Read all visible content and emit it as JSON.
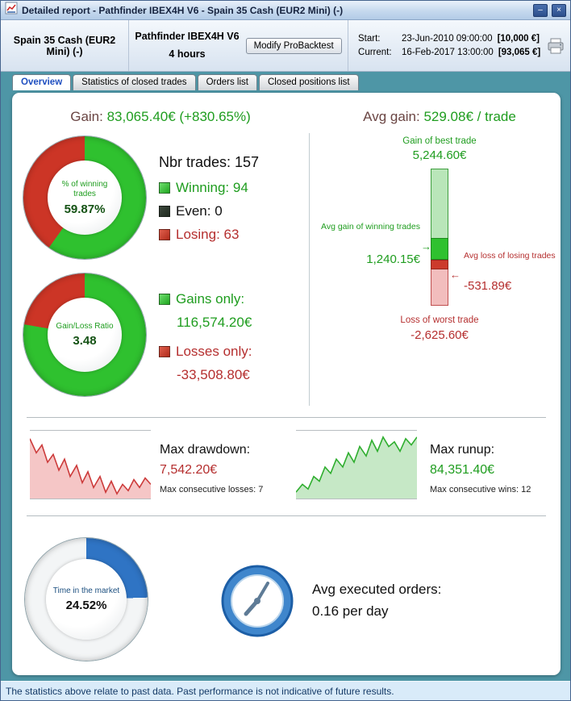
{
  "window": {
    "title": "Detailed report - Pathfinder IBEX4H V6 - Spain 35 Cash (EUR2 Mini) (-)"
  },
  "icons": {
    "minimize": "–",
    "close": "×",
    "arrow_right": "→",
    "arrow_left": "←"
  },
  "colors": {
    "teal_bg": "#4e96a6",
    "green": "#1f9d1f",
    "red": "#b52f2f",
    "label_brown": "#6a4543",
    "donut_green": "#2fc12f",
    "donut_red": "#cc3526",
    "donut_blue": "#2f74c4",
    "donut_green_dark": "#145214",
    "time_label_blue": "#1d5080",
    "legend_even": "#1f2a1f",
    "bar_light_green": "#b9e6b9",
    "bar_light_red": "#f2bdbd",
    "status_text": "#143a66"
  },
  "header": {
    "instrument": "Spain 35 Cash (EUR2 Mini) (-)",
    "system_name": "Pathfinder IBEX4H V6",
    "timeframe": "4 hours",
    "modify_button": "Modify ProBacktest",
    "start_label": "Start:",
    "start_datetime": "23-Jun-2010 09:00:00",
    "start_capital": "[10,000 €]",
    "current_label": "Current:",
    "current_datetime": "16-Feb-2017 13:00:00",
    "current_capital": "[93,065 €]"
  },
  "tabs": [
    {
      "label": "Overview",
      "selected": true
    },
    {
      "label": "Statistics of closed trades",
      "selected": false
    },
    {
      "label": "Orders list",
      "selected": false
    },
    {
      "label": "Closed positions list",
      "selected": false
    }
  ],
  "overview": {
    "gain_label": "Gain:",
    "gain_value": "83,065.40€ (+830.65%)",
    "winning_donut": {
      "label": "% of winning trades",
      "value": "59.87%",
      "percent": 59.87
    },
    "trades": {
      "nbr": "Nbr trades: 157",
      "winning": "Winning: 94",
      "even": "Even: 0",
      "losing": "Losing: 63"
    },
    "ratio_donut": {
      "label": "Gain/Loss Ratio",
      "value": "3.48",
      "green_percent": 77.7
    },
    "gains_only": {
      "label": "Gains only:",
      "value": "116,574.20€"
    },
    "losses_only": {
      "label": "Losses only:",
      "value": "-33,508.80€"
    },
    "avg_gain_label": "Avg gain:",
    "avg_gain_value": "529.08€ / trade",
    "bar_chart": {
      "type": "bar",
      "best_label": "Gain of best trade",
      "best_value": "5,244.60€",
      "avg_win_label": "Avg gain of winning trades",
      "avg_win_value": "1,240.15€",
      "avg_loss_label": "Avg loss of losing trades",
      "avg_loss_value": "-531.89€",
      "worst_label": "Loss of worst trade",
      "worst_value": "-2,625.60€",
      "best": 5244.6,
      "avg_win": 1240.15,
      "avg_loss": -531.89,
      "worst": -2625.6
    },
    "drawdown": {
      "label": "Max drawdown:",
      "value": "7,542.20€",
      "sub": "Max consecutive losses: 7"
    },
    "runup": {
      "label": "Max runup:",
      "value": "84,351.40€",
      "sub": "Max consecutive wins: 12"
    },
    "time_donut": {
      "label": "Time in the market",
      "value": "24.52%",
      "percent": 24.52
    },
    "orders": {
      "line1": "Avg executed orders:",
      "line2": "0.16 per day"
    }
  },
  "status_bar": "The statistics above relate to past data. Past performance is not indicative of future results."
}
